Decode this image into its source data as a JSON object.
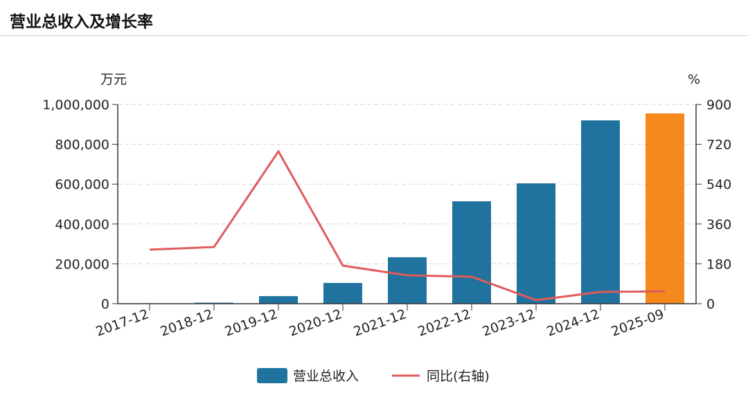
{
  "header": {
    "title": "营业总收入及增长率"
  },
  "chart_data": {
    "type": "bar",
    "categories": [
      "2017-12",
      "2018-12",
      "2019-12",
      "2020-12",
      "2021-12",
      "2022-12",
      "2023-12",
      "2024-12",
      "2025-09"
    ],
    "left_unit": "万元",
    "right_unit": "%",
    "ylim": [
      0,
      1000000
    ],
    "y2lim": [
      0,
      900
    ],
    "yticks": [
      "0",
      "200,000",
      "400,000",
      "600,000",
      "800,000",
      "1,000,000"
    ],
    "y2ticks": [
      "0",
      "180",
      "360",
      "540",
      "720",
      "900"
    ],
    "grid": true,
    "legend_position": "bottom",
    "series": [
      {
        "name": "营业总收入",
        "type": "bar",
        "axis": "left",
        "color": "#21739f",
        "highlight_last_color": "#f5891c",
        "values": [
          2000,
          5000,
          38000,
          104000,
          233000,
          514000,
          604000,
          920000,
          955000
        ]
      },
      {
        "name": "同比(右轴)",
        "type": "line",
        "axis": "right",
        "color": "#e05a5a",
        "values": [
          244,
          256,
          688,
          172,
          128,
          122,
          16,
          53,
          56
        ]
      }
    ]
  }
}
